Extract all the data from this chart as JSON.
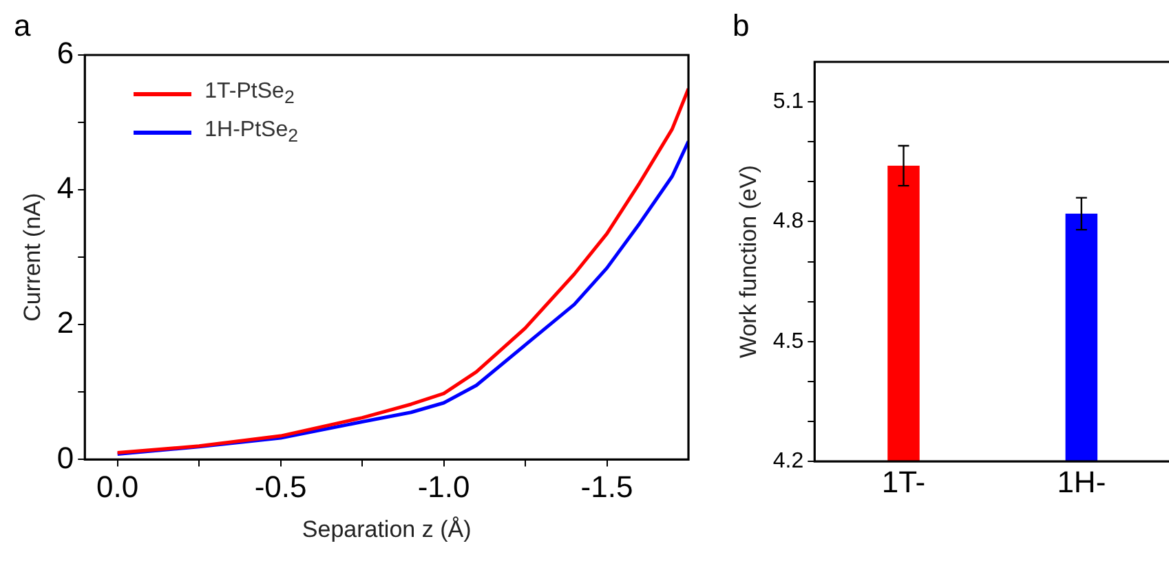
{
  "chart_data": [
    {
      "type": "line",
      "annotations": [
        "a"
      ],
      "xlabel": "Separation z (Å)",
      "ylabel": "Current (nA)",
      "xlim": [
        0.1,
        -1.75
      ],
      "ylim": [
        0,
        6
      ],
      "xticks": [
        {
          "value": 0,
          "label": "0.0"
        },
        {
          "value": -0.25,
          "label": null
        },
        -0.5,
        {
          "value": -0.75,
          "label": null
        },
        {
          "value": -1,
          "label": "-1.0"
        },
        {
          "value": -1.25,
          "label": null
        },
        -1.5
      ],
      "yticks": [
        0,
        {
          "value": 1,
          "label": null
        },
        2,
        {
          "value": 3,
          "label": null
        },
        4,
        {
          "value": 5,
          "label": null
        },
        6
      ],
      "x": [
        0,
        -0.25,
        -0.5,
        -0.75,
        -0.9,
        -1.0,
        -1.1,
        -1.25,
        -1.4,
        -1.5,
        -1.6,
        -1.7,
        -1.75
      ],
      "series": [
        {
          "name": "1T-PtSe$_{2}$",
          "color": "#ff0000",
          "values": [
            0.1,
            0.2,
            0.35,
            0.62,
            0.82,
            0.98,
            1.3,
            1.95,
            2.75,
            3.35,
            4.1,
            4.9,
            5.5
          ]
        },
        {
          "name": "1H-PtSe$_{2}$",
          "color": "#0000ff",
          "values": [
            0.08,
            0.19,
            0.32,
            0.56,
            0.7,
            0.84,
            1.1,
            1.7,
            2.3,
            2.84,
            3.5,
            4.2,
            4.72
          ]
        }
      ],
      "legend": "top left",
      "grid": false,
      "marker": "none",
      "line_style": "solid"
    },
    {
      "type": "bar",
      "annotations": [
        "b"
      ],
      "ylabel": "Work function (eV)",
      "categories": [
        "1T-",
        "1H-"
      ],
      "values": [
        4.94,
        4.82
      ],
      "errors": [
        0.05,
        0.04
      ],
      "colors": [
        "#ff0000",
        "#0000ff"
      ],
      "ylim": [
        4.2,
        5.2
      ],
      "yticks": [
        4.2,
        {
          "value": 4.3,
          "label": null
        },
        {
          "value": 4.4,
          "label": null
        },
        4.5,
        {
          "value": 4.6,
          "label": null
        },
        {
          "value": 4.7,
          "label": null
        },
        4.8,
        {
          "value": 4.9,
          "label": null
        },
        {
          "value": 5.0,
          "label": null
        },
        5.1
      ],
      "grid": false,
      "legend": false
    }
  ]
}
